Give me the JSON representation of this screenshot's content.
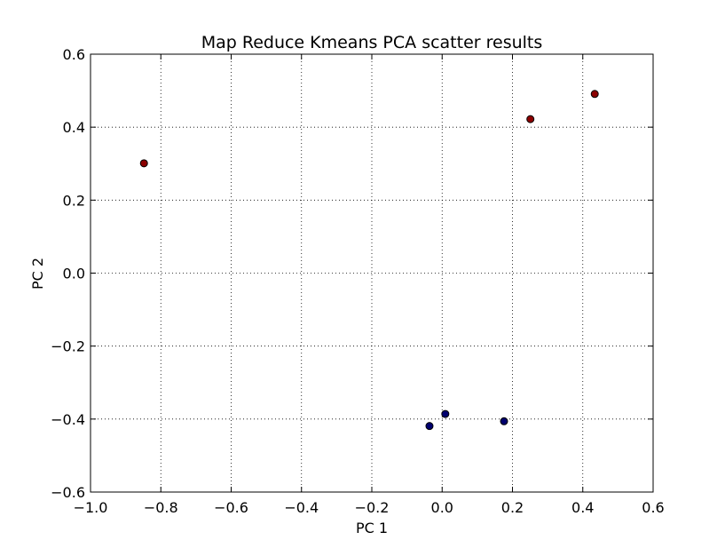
{
  "chart_data": {
    "type": "scatter",
    "title": "Map Reduce Kmeans PCA scatter results",
    "xlabel": "PC 1",
    "ylabel": "PC 2",
    "xlim": [
      -1.0,
      0.6
    ],
    "ylim": [
      -0.6,
      0.6
    ],
    "xticks": [
      -1.0,
      -0.8,
      -0.6,
      -0.4,
      -0.2,
      0.0,
      0.2,
      0.4,
      0.6
    ],
    "yticks": [
      -0.6,
      -0.4,
      -0.2,
      0.0,
      0.2,
      0.4,
      0.6
    ],
    "xtick_labels": [
      "−1.0",
      "−0.8",
      "−0.6",
      "−0.4",
      "−0.2",
      "0.0",
      "0.2",
      "0.4",
      "0.6"
    ],
    "ytick_labels": [
      "−0.6",
      "−0.4",
      "−0.2",
      "0.0",
      "0.2",
      "0.4",
      "0.6"
    ],
    "grid": true,
    "series": [
      {
        "color": "#8b0000",
        "points": [
          {
            "x": -0.848,
            "y": 0.301
          },
          {
            "x": 0.251,
            "y": 0.422
          },
          {
            "x": 0.434,
            "y": 0.491
          }
        ]
      },
      {
        "color": "#00006e",
        "points": [
          {
            "x": -0.036,
            "y": -0.419
          },
          {
            "x": 0.009,
            "y": -0.386
          },
          {
            "x": 0.176,
            "y": -0.406
          }
        ]
      }
    ]
  }
}
